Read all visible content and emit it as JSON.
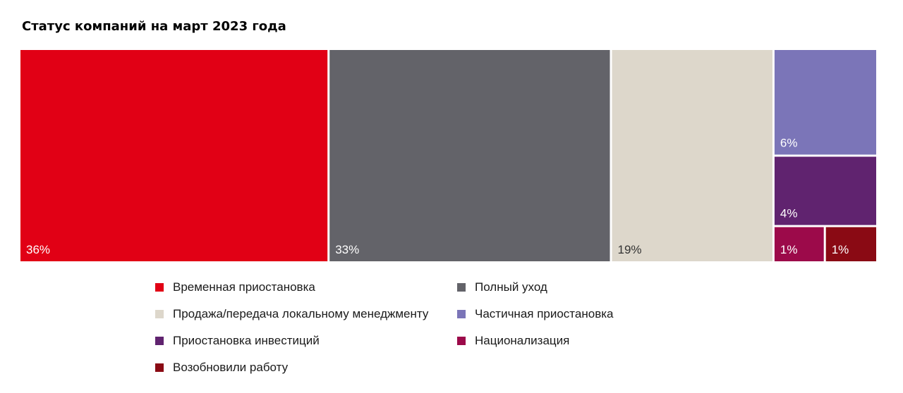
{
  "title": "Статус компаний на март 2023 года",
  "chart_data": {
    "type": "treemap",
    "title": "Статус компаний на март 2023 года",
    "unit": "%",
    "series": [
      {
        "name": "Временная приостановка",
        "value": 36,
        "label": "36%",
        "color": "#e10015",
        "label_color": "#ffffff"
      },
      {
        "name": "Полный уход",
        "value": 33,
        "label": "33%",
        "color": "#636369",
        "label_color": "#ffffff"
      },
      {
        "name": "Продажа/передача локальному менеджменту",
        "value": 19,
        "label": "19%",
        "color": "#ddd7cb",
        "label_color": "#333333"
      },
      {
        "name": "Частичная приостановка",
        "value": 6,
        "label": "6%",
        "color": "#7b75b8",
        "label_color": "#ffffff"
      },
      {
        "name": "Приостановка инвестиций",
        "value": 4,
        "label": "4%",
        "color": "#60236f",
        "label_color": "#ffffff"
      },
      {
        "name": "Национализация",
        "value": 1,
        "label": "1%",
        "color": "#9c0a4a",
        "label_color": "#ffffff"
      },
      {
        "name": "Возобновили работу",
        "value": 1,
        "label": "1%",
        "color": "#8a0a14",
        "label_color": "#ffffff"
      }
    ],
    "legend_position": "bottom"
  }
}
